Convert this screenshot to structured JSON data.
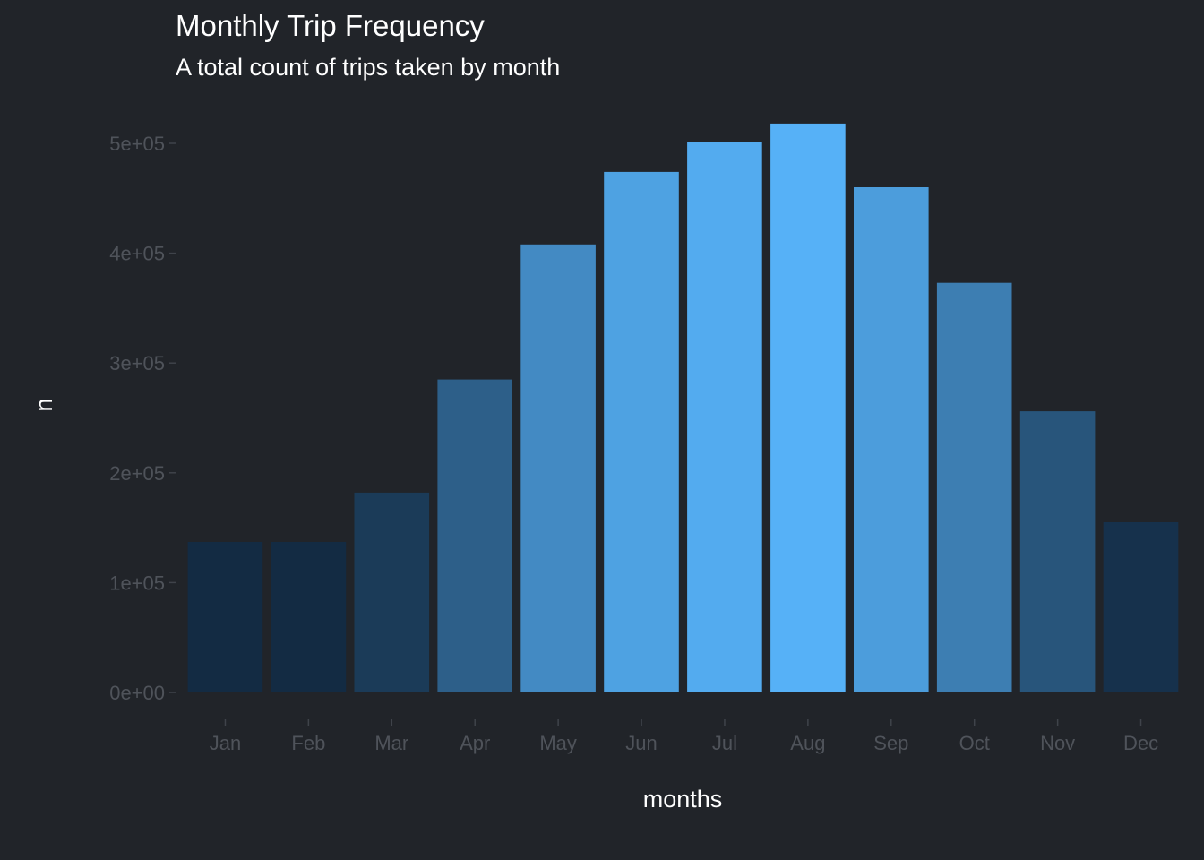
{
  "chart_data": {
    "type": "bar",
    "title": "Monthly Trip Frequency",
    "subtitle": "A total count of trips taken by month",
    "xlabel": "months",
    "ylabel": "n",
    "categories": [
      "Jan",
      "Feb",
      "Mar",
      "Apr",
      "May",
      "Jun",
      "Jul",
      "Aug",
      "Sep",
      "Oct",
      "Nov",
      "Dec"
    ],
    "values": [
      137000,
      137000,
      182000,
      285000,
      408000,
      474000,
      501000,
      518000,
      460000,
      373000,
      256000,
      155000
    ],
    "ylim": [
      0,
      520000
    ],
    "y_ticks": [
      0,
      100000,
      200000,
      300000,
      400000,
      500000
    ],
    "y_tick_labels": [
      "0e+00",
      "1e+05",
      "2e+05",
      "3e+05",
      "4e+05",
      "5e+05"
    ],
    "grid": false,
    "legend": "none",
    "fill_scale": {
      "low": "#132b43",
      "high": "#56b1f7"
    },
    "colors": {
      "background": "#212429",
      "text": "#ffffff",
      "tick_text": "#4f535a"
    }
  }
}
